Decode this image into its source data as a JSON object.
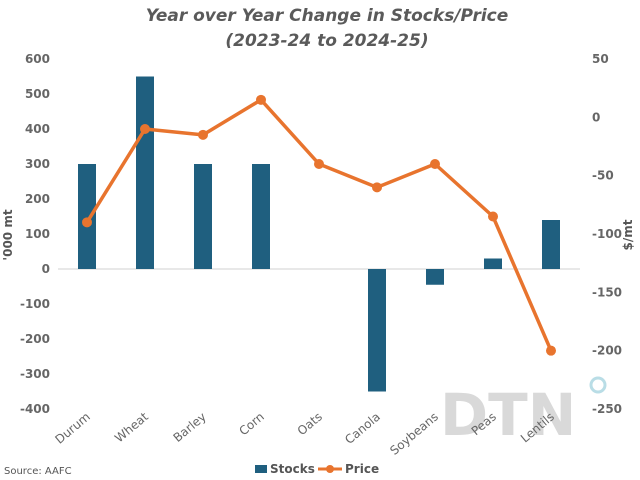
{
  "chart_data": {
    "type": "bar",
    "title_lines": [
      "Year over Year Change in Stocks/Price",
      "(2023-24 to 2024-25)"
    ],
    "ylabel": "'000 mt",
    "y2label": "$/mt",
    "categories": [
      "Durum",
      "Wheat",
      "Barley",
      "Corn",
      "Oats",
      "Canola",
      "Soybeans",
      "Peas",
      "Lentils"
    ],
    "ylim": [
      -400,
      600
    ],
    "y_ticks": [
      600,
      500,
      400,
      300,
      200,
      100,
      0,
      -100,
      -200,
      -300,
      -400
    ],
    "y2lim": [
      -250,
      50
    ],
    "y2_ticks": [
      50,
      0,
      -50,
      -100,
      -150,
      -200,
      -250
    ],
    "grid": false,
    "legend_position": "bottom",
    "series": [
      {
        "name": "Stocks",
        "type": "bar",
        "axis": "left",
        "color": "#1f5f7f",
        "values": [
          300,
          550,
          300,
          300,
          null,
          -350,
          -45,
          30,
          140
        ]
      },
      {
        "name": "Price",
        "type": "line",
        "axis": "right",
        "color": "#e8742e",
        "values": [
          -90,
          -10,
          -15,
          15,
          -40,
          -60,
          -40,
          -85,
          -200
        ]
      }
    ]
  },
  "source_text": "Source: AAFC",
  "logo": {
    "text": "DTN",
    "accent_color": "#b9dde6"
  }
}
